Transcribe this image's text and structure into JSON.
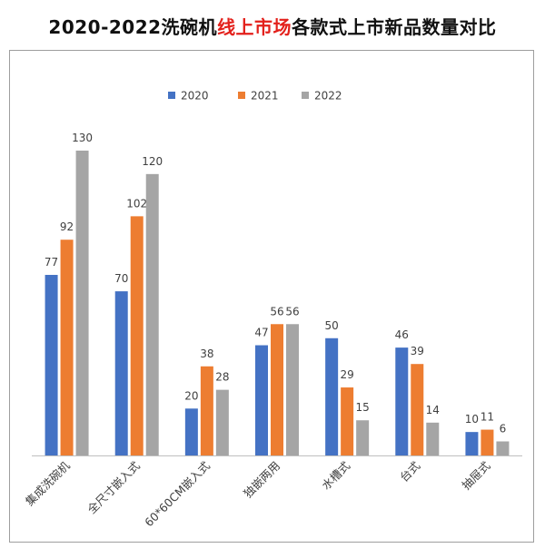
{
  "title": {
    "prefix": "2020-2022洗碗机",
    "highlight": "线上市场",
    "suffix": "各款式上市新品数量对比"
  },
  "chart_data": {
    "type": "bar",
    "categories": [
      "集成洗碗机",
      "全尺寸嵌入式",
      "60*60CM嵌入式",
      "独嵌两用",
      "水槽式",
      "台式",
      "抽屉式"
    ],
    "series": [
      {
        "name": "2020",
        "color": "#4472c4",
        "values": [
          77,
          70,
          20,
          47,
          50,
          46,
          10
        ]
      },
      {
        "name": "2021",
        "color": "#ed7d31",
        "values": [
          92,
          102,
          38,
          56,
          29,
          39,
          11
        ]
      },
      {
        "name": "2022",
        "color": "#a5a5a5",
        "values": [
          130,
          120,
          28,
          56,
          15,
          14,
          6
        ]
      }
    ],
    "ylim": [
      0,
      140
    ],
    "grid": false,
    "legend_position": "top-center",
    "data_labels": true
  }
}
